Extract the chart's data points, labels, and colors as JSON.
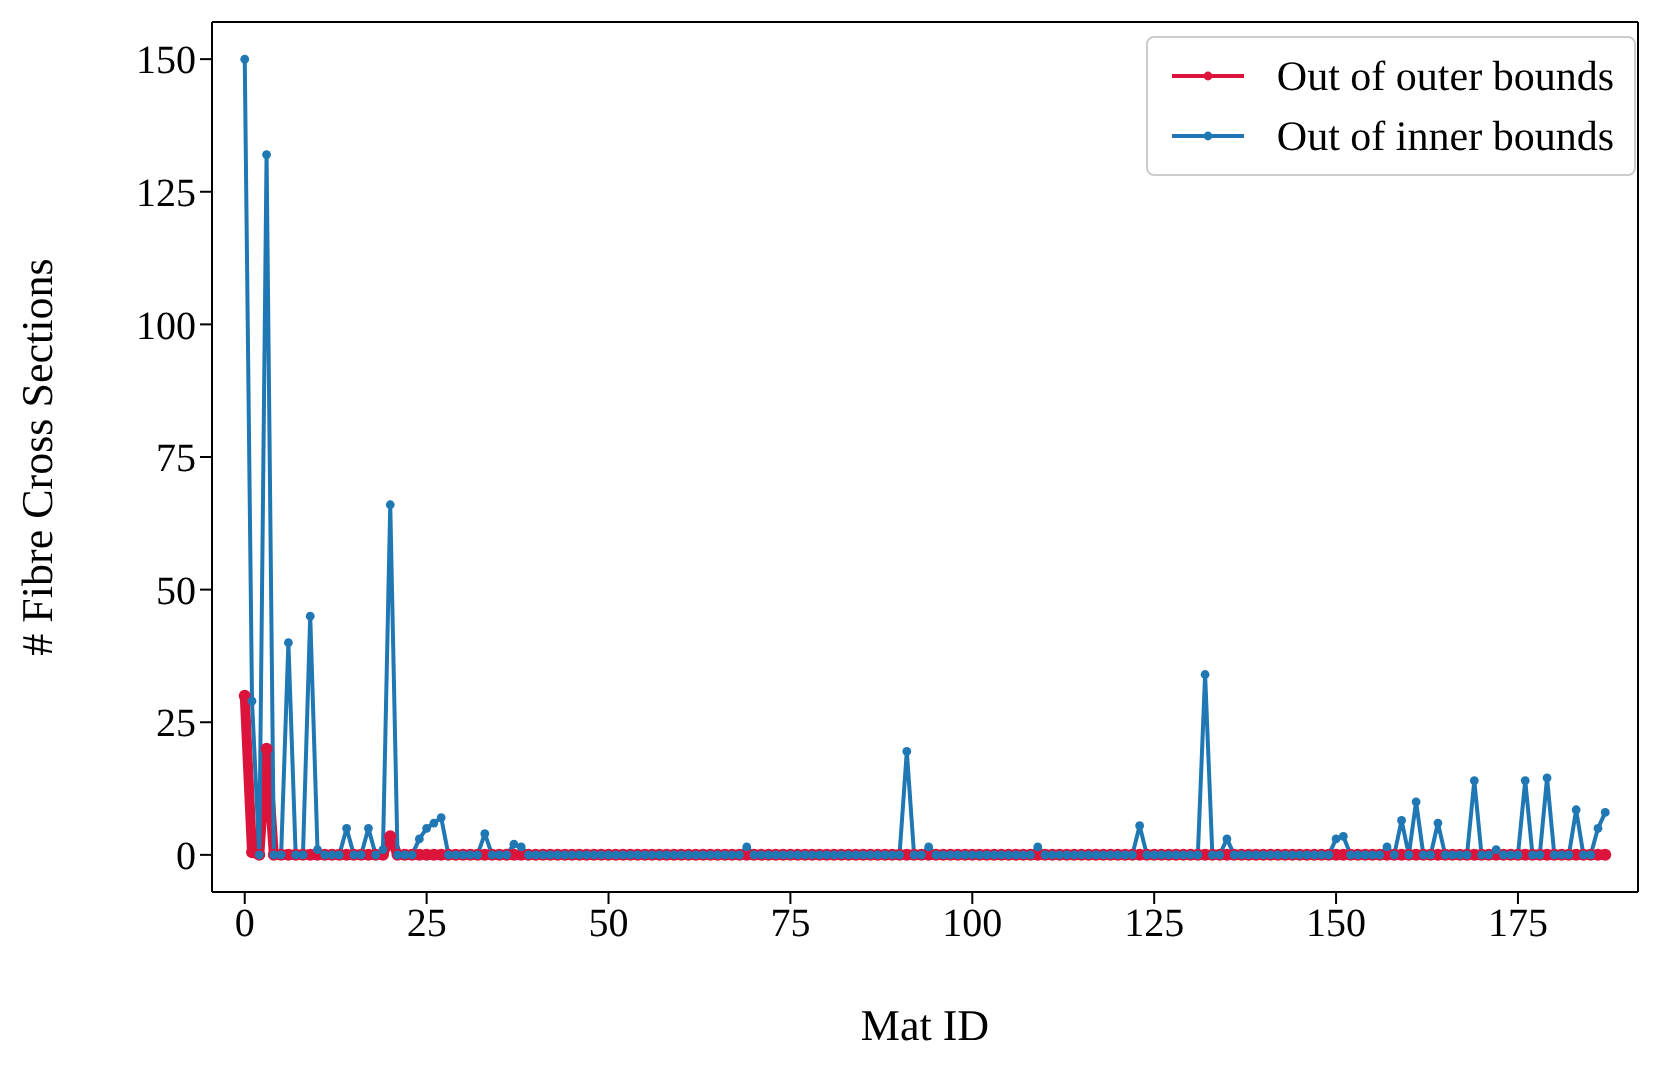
{
  "chart_data": {
    "type": "line",
    "xlabel": "Mat ID",
    "ylabel": "# Fibre Cross Sections",
    "x": [
      0,
      1,
      2,
      3,
      4,
      5,
      6,
      7,
      8,
      9,
      10,
      11,
      12,
      13,
      14,
      15,
      16,
      17,
      18,
      19,
      20,
      21,
      22,
      23,
      24,
      25,
      26,
      27,
      28,
      29,
      30,
      31,
      32,
      33,
      34,
      35,
      36,
      37,
      38,
      39,
      40,
      41,
      42,
      43,
      44,
      45,
      46,
      47,
      48,
      49,
      50,
      51,
      52,
      53,
      54,
      55,
      56,
      57,
      58,
      59,
      60,
      61,
      62,
      63,
      64,
      65,
      66,
      67,
      68,
      69,
      70,
      71,
      72,
      73,
      74,
      75,
      76,
      77,
      78,
      79,
      80,
      81,
      82,
      83,
      84,
      85,
      86,
      87,
      88,
      89,
      90,
      91,
      92,
      93,
      94,
      95,
      96,
      97,
      98,
      99,
      100,
      101,
      102,
      103,
      104,
      105,
      106,
      107,
      108,
      109,
      110,
      111,
      112,
      113,
      114,
      115,
      116,
      117,
      118,
      119,
      120,
      121,
      122,
      123,
      124,
      125,
      126,
      127,
      128,
      129,
      130,
      131,
      132,
      133,
      134,
      135,
      136,
      137,
      138,
      139,
      140,
      141,
      142,
      143,
      144,
      145,
      146,
      147,
      148,
      149,
      150,
      151,
      152,
      153,
      154,
      155,
      156,
      157,
      158,
      159,
      160,
      161,
      162,
      163,
      164,
      165,
      166,
      167,
      168,
      169,
      170,
      171,
      172,
      173,
      174,
      175,
      176,
      177,
      178,
      179,
      180,
      181,
      182,
      183,
      184,
      185,
      186,
      187
    ],
    "series": [
      {
        "name": "Out of outer bounds",
        "color": "#dc143c",
        "values": [
          30,
          0.5,
          0,
          20,
          0,
          0,
          0,
          0,
          0,
          0,
          0,
          0,
          0,
          0,
          0,
          0,
          0,
          0,
          0,
          0,
          3.5,
          0,
          0,
          0,
          0,
          0,
          0,
          0,
          0,
          0,
          0,
          0,
          0,
          0,
          0,
          0,
          0,
          0,
          0,
          0,
          0,
          0,
          0,
          0,
          0,
          0,
          0,
          0,
          0,
          0,
          0,
          0,
          0,
          0,
          0,
          0,
          0,
          0,
          0,
          0,
          0,
          0,
          0,
          0,
          0,
          0,
          0,
          0,
          0,
          0,
          0,
          0,
          0,
          0,
          0,
          0,
          0,
          0,
          0,
          0,
          0,
          0,
          0,
          0,
          0,
          0,
          0,
          0,
          0,
          0,
          0,
          0,
          0,
          0,
          0,
          0,
          0,
          0,
          0,
          0,
          0,
          0,
          0,
          0,
          0,
          0,
          0,
          0,
          0,
          0,
          0,
          0,
          0,
          0,
          0,
          0,
          0,
          0,
          0,
          0,
          0,
          0,
          0,
          0,
          0,
          0,
          0,
          0,
          0,
          0,
          0,
          0,
          0,
          0,
          0,
          0,
          0,
          0,
          0,
          0,
          0,
          0,
          0,
          0,
          0,
          0,
          0,
          0,
          0,
          0,
          0,
          0,
          0,
          0,
          0,
          0,
          0,
          0,
          0,
          0,
          0,
          0,
          0,
          0,
          0,
          0,
          0,
          0,
          0,
          0,
          0,
          0,
          0,
          0,
          0,
          0,
          0,
          0,
          0,
          0,
          0,
          0,
          0,
          0,
          0,
          0,
          0,
          0
        ]
      },
      {
        "name": "Out of inner bounds",
        "color": "#1f77b4",
        "values": [
          150,
          29,
          0,
          132,
          0,
          0,
          40,
          0,
          0,
          45,
          1,
          0,
          0,
          0,
          5,
          0,
          0,
          5,
          0,
          1,
          66,
          0,
          0,
          0,
          3,
          5,
          6,
          7,
          0,
          0,
          0,
          0,
          0,
          4,
          0,
          0,
          0,
          2,
          1.5,
          0,
          0,
          0,
          0,
          0,
          0,
          0,
          0,
          0,
          0,
          0,
          0,
          0,
          0,
          0,
          0,
          0,
          0,
          0,
          0,
          0,
          0,
          0,
          0,
          0,
          0,
          0,
          0,
          0,
          0,
          1.5,
          0,
          0,
          0,
          0,
          0,
          0,
          0,
          0,
          0,
          0,
          0,
          0,
          0,
          0,
          0,
          0,
          0,
          0,
          0,
          0,
          0,
          19.5,
          0,
          0,
          1.5,
          0,
          0,
          0,
          0,
          0,
          0,
          0,
          0,
          0,
          0,
          0,
          0,
          0,
          0,
          1.5,
          0,
          0,
          0,
          0,
          0,
          0,
          0,
          0,
          0,
          0,
          0,
          0,
          0,
          5.5,
          0,
          0,
          0,
          0,
          0,
          0,
          0,
          0,
          34,
          0,
          0,
          3,
          0,
          0,
          0,
          0,
          0,
          0,
          0,
          0,
          0,
          0,
          0,
          0,
          0,
          0,
          3,
          3.5,
          0,
          0,
          0,
          0,
          0,
          1.5,
          0,
          6.5,
          0,
          10,
          0,
          0,
          6,
          0,
          0,
          0,
          0,
          14,
          0,
          0,
          1,
          0,
          0,
          0,
          14,
          0,
          0,
          14.5,
          0,
          0,
          0,
          8.5,
          0,
          0,
          5,
          8
        ]
      }
    ],
    "xlim": [
      -4.5,
      191.5
    ],
    "xticks": [
      0,
      25,
      50,
      75,
      100,
      125,
      150,
      175
    ],
    "ylim": [
      -7,
      157
    ],
    "yticks": [
      0,
      25,
      50,
      75,
      100,
      125,
      150
    ],
    "legend": "top right",
    "marker": "circle",
    "line_style": "solid",
    "grid": false
  }
}
